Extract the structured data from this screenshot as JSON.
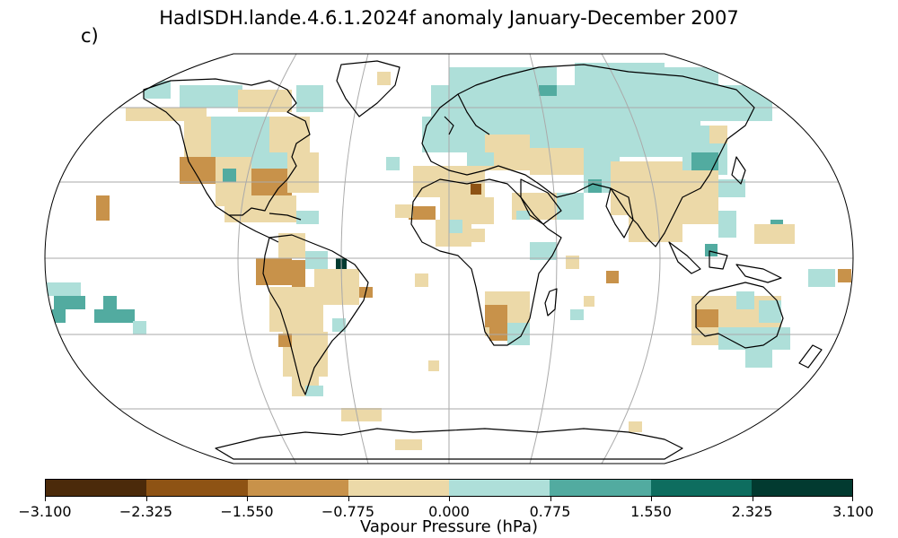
{
  "map": {
    "title": "HadISDH.lande.4.6.1.2024f anomaly January-December 2007",
    "panel_label": "c)",
    "projection": "Robinson",
    "graticule_lines": "lat/lon 30° grid",
    "land_mask": "continent outlines"
  },
  "colorbar": {
    "label": "Vapour Pressure (hPa)",
    "ticks": [
      "−3.100",
      "−2.325",
      "−1.550",
      "−0.775",
      "0.000",
      "0.775",
      "1.550",
      "2.325",
      "3.100"
    ],
    "tick_values": [
      -3.1,
      -2.325,
      -1.55,
      -0.775,
      0.0,
      0.775,
      1.55,
      2.325,
      3.1
    ],
    "colors": [
      "#4b2a0a",
      "#8e5314",
      "#c8924a",
      "#ecd9a8",
      "#aedfd9",
      "#52aba0",
      "#0e6d5f",
      "#023a30"
    ]
  }
}
